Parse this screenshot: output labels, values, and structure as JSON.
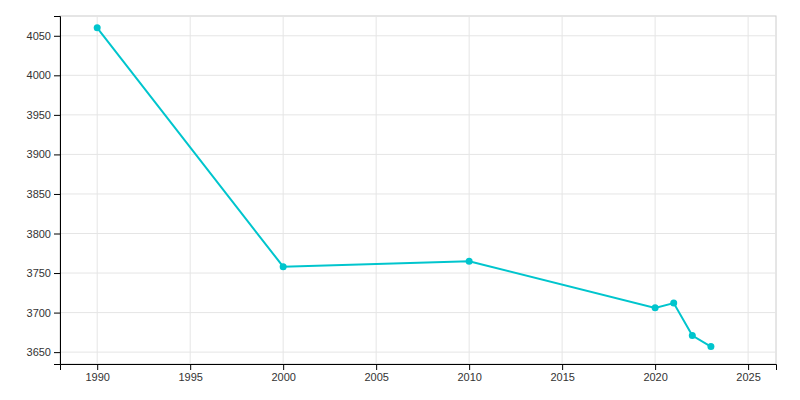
{
  "chart_data": {
    "type": "line",
    "x": [
      1990,
      2000,
      2010,
      2020,
      2021,
      2022,
      2023
    ],
    "values": [
      4060,
      3758,
      3765,
      3706,
      3712,
      3671,
      3657
    ],
    "color": "#00C5CD",
    "marker": "circle",
    "xlim": [
      1988,
      2026.5
    ],
    "ylim": [
      3635,
      4075
    ],
    "xticks": [
      1990,
      1995,
      2000,
      2005,
      2010,
      2015,
      2020,
      2025
    ],
    "yticks": [
      3650,
      3700,
      3750,
      3800,
      3850,
      3900,
      3950,
      4000,
      4050
    ],
    "grid": true
  }
}
